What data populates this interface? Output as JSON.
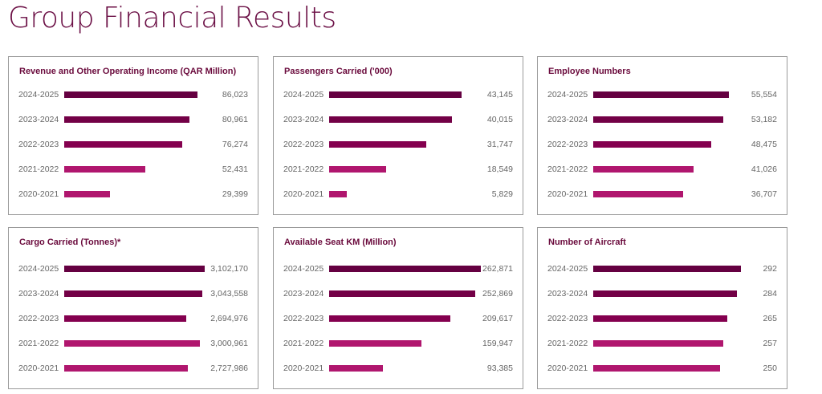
{
  "page_title": "Group Financial Results",
  "colors": [
    "#650041",
    "#730046",
    "#84004f",
    "#b0166e",
    "#b0166e"
  ],
  "chart_data": [
    {
      "type": "bar",
      "orientation": "horizontal",
      "title": "Revenue and Other Operating Income (QAR Million)",
      "categories": [
        "2024-2025",
        "2023-2024",
        "2022-2023",
        "2021-2022",
        "2020-2021"
      ],
      "values": [
        86023,
        80961,
        76274,
        52431,
        29399
      ],
      "labels": [
        "86,023",
        "80,961",
        "76,274",
        "52,431",
        "29,399"
      ]
    },
    {
      "type": "bar",
      "orientation": "horizontal",
      "title": "Passengers Carried ('000)",
      "categories": [
        "2024-2025",
        "2023-2024",
        "2022-2023",
        "2021-2022",
        "2020-2021"
      ],
      "values": [
        43145,
        40015,
        31747,
        18549,
        5829
      ],
      "labels": [
        "43,145",
        "40,015",
        "31,747",
        "18,549",
        "5,829"
      ]
    },
    {
      "type": "bar",
      "orientation": "horizontal",
      "title": "Employee Numbers",
      "categories": [
        "2024-2025",
        "2023-2024",
        "2022-2023",
        "2021-2022",
        "2020-2021"
      ],
      "values": [
        55554,
        53182,
        48475,
        41026,
        36707
      ],
      "labels": [
        "55,554",
        "53,182",
        "48,475",
        "41,026",
        "36,707"
      ]
    },
    {
      "type": "bar",
      "orientation": "horizontal",
      "title": "Cargo Carried (Tonnes)*",
      "categories": [
        "2024-2025",
        "2023-2024",
        "2022-2023",
        "2021-2022",
        "2020-2021"
      ],
      "values": [
        3102170,
        3043558,
        2694976,
        3000961,
        2727986
      ],
      "labels": [
        "3,102,170",
        "3,043,558",
        "2,694,976",
        "3,000,961",
        "2,727,986"
      ]
    },
    {
      "type": "bar",
      "orientation": "horizontal",
      "title": "Available Seat KM (Million)",
      "categories": [
        "2024-2025",
        "2023-2024",
        "2022-2023",
        "2021-2022",
        "2020-2021"
      ],
      "values": [
        262871,
        252869,
        209617,
        159947,
        93385
      ],
      "labels": [
        "262,871",
        "252,869",
        "209,617",
        "159,947",
        "93,385"
      ]
    },
    {
      "type": "bar",
      "orientation": "horizontal",
      "title": "Number of Aircraft",
      "categories": [
        "2024-2025",
        "2023-2024",
        "2022-2023",
        "2021-2022",
        "2020-2021"
      ],
      "values": [
        292,
        284,
        265,
        257,
        250
      ],
      "labels": [
        "292",
        "284",
        "265",
        "257",
        "250"
      ]
    }
  ]
}
